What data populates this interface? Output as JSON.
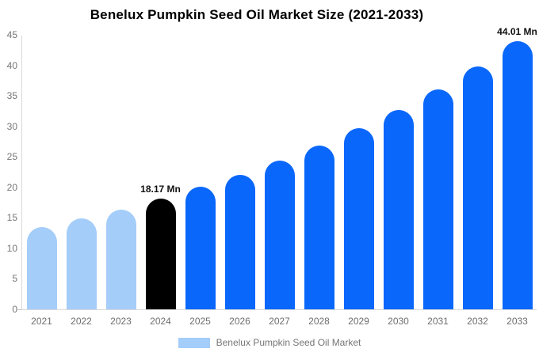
{
  "title": "Benelux Pumpkin Seed Oil Market Size (2021-2033)",
  "legend": {
    "label": "Benelux Pumpkin Seed Oil Market",
    "swatch_color": "#a4cdf9"
  },
  "colors": {
    "historical_bar": "#a4cdf9",
    "base_year_bar": "#000000",
    "forecast_bar": "#0a67fb",
    "axis_line": "#d9d9d9",
    "axis_text": "#6e6e6e",
    "title_text": "#000000",
    "data_label_text": "#111111"
  },
  "chart_data": {
    "type": "bar",
    "title": "Benelux Pumpkin Seed Oil Market Size (2021-2033)",
    "unit": "Mn",
    "categories": [
      "2021",
      "2022",
      "2023",
      "2024",
      "2025",
      "2026",
      "2027",
      "2028",
      "2029",
      "2030",
      "2031",
      "2032",
      "2033"
    ],
    "values": [
      13.5,
      14.9,
      16.4,
      18.17,
      20.1,
      22.1,
      24.4,
      26.9,
      29.7,
      32.7,
      36.0,
      39.8,
      44.01
    ],
    "bar_colors": [
      "#a4cdf9",
      "#a4cdf9",
      "#a4cdf9",
      "#000000",
      "#0a67fb",
      "#0a67fb",
      "#0a67fb",
      "#0a67fb",
      "#0a67fb",
      "#0a67fb",
      "#0a67fb",
      "#0a67fb",
      "#0a67fb"
    ],
    "annotations": [
      {
        "category": "2024",
        "text": "18.17 Mn"
      },
      {
        "category": "2033",
        "text": "44.01 Mn"
      }
    ],
    "xlabel": "",
    "ylabel": "",
    "ylim": [
      0,
      45
    ],
    "ytick_step": 5,
    "grid": false,
    "legend_position": "bottom",
    "legend_entries": [
      "Benelux Pumpkin Seed Oil Market"
    ]
  }
}
